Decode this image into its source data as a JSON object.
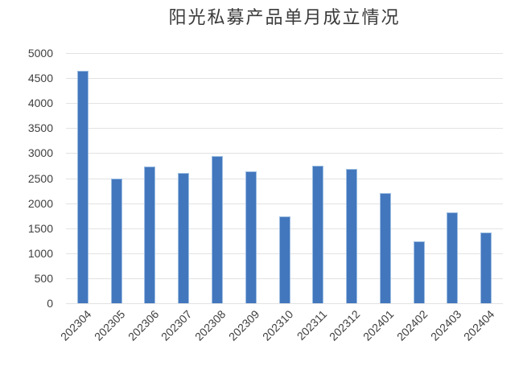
{
  "chart_data": {
    "type": "bar",
    "title": "阳光私募产品单月成立情况",
    "categories": [
      "202304",
      "202305",
      "202306",
      "202307",
      "202308",
      "202309",
      "202310",
      "202311",
      "202312",
      "202401",
      "202402",
      "202403",
      "202404"
    ],
    "values": [
      4640,
      2490,
      2730,
      2610,
      2940,
      2640,
      1730,
      2750,
      2690,
      2210,
      1240,
      1810,
      1420
    ],
    "xlabel": "",
    "ylabel": "",
    "ylim": [
      0,
      5000
    ],
    "ytick_step": 500,
    "grid": true,
    "legend": false,
    "x_label_rotation_deg": -45,
    "colors": {
      "bar_fill": "#4377BD",
      "bar_edge": "#9DBEE2",
      "gridline": "#E2E2E2",
      "axis_text": "#3F3F3F",
      "title_text": "#3A3A3A",
      "background": "#FFFFFF"
    }
  }
}
